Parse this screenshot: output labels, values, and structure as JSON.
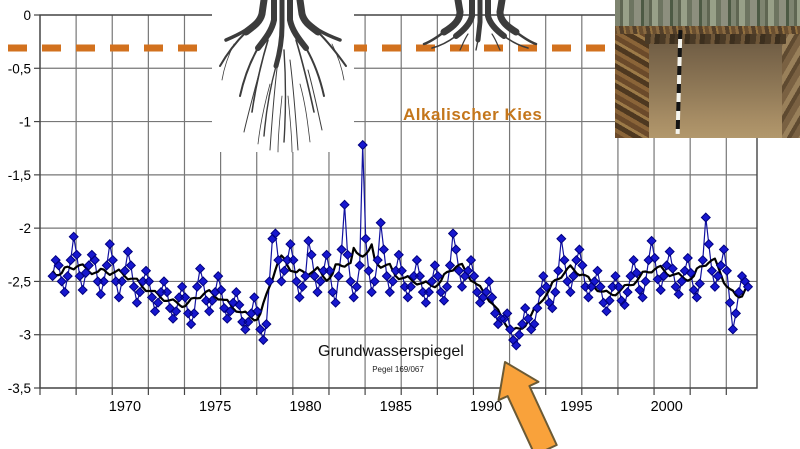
{
  "labels": {
    "aquifer_label": "Alkalischer Kies",
    "series_label": "Grundwasserspiegel",
    "gauge_label": "Pegel 169/067"
  },
  "colors": {
    "aquifer_label_text": "#C4761B",
    "reference_line": "#D2711E",
    "marker_fill": "#1717CE",
    "marker_edge": "#000080",
    "raw_line": "#1212A0",
    "trend_line": "#000000",
    "grid": "#777777",
    "axis_line": "#444444",
    "axis_text": "#000000",
    "arrow_fill": "#F9A23B",
    "arrow_edge": "#6B5A35"
  },
  "icons": {
    "deep_rooted_tree": "deep-root-illustration",
    "shallow_rooted_tree": "shallow-root-illustration",
    "soil_profile_photo": "soil-pit-photo",
    "annotation_arrow": "orange-arrow-pointing-to-1991-minimum"
  },
  "chart_data": {
    "type": "line",
    "title": "",
    "xlabel": "",
    "ylabel": "",
    "grid": true,
    "xlim": [
      1965.3,
      2005.0
    ],
    "ylim": [
      -3.5,
      0
    ],
    "x_tick_years": [
      1970,
      1975,
      1980,
      1985,
      1990,
      1995,
      2000
    ],
    "x_tick_labels": [
      "1970",
      "1975",
      "1980",
      "1985",
      "1990",
      "1995",
      "2000"
    ],
    "y_tick_values": [
      0,
      -0.5,
      -1,
      -1.5,
      -2,
      -2.5,
      -3,
      -3.5
    ],
    "y_tick_labels": [
      "0",
      "-0,5",
      "-1",
      "-1,5",
      "-2",
      "-2,5",
      "-3",
      "-3,5"
    ],
    "vertical_grid_step_years": 2,
    "reference_line": {
      "value": -0.31,
      "style": "dashed",
      "color": "#D2711E",
      "label": "Alkalischer Kies"
    },
    "annotation": {
      "type": "arrow",
      "points_to_year": 1991,
      "points_to_value": -3.1
    },
    "series": [
      {
        "name": "Grundwasserspiegel Pegel 169/067",
        "units": "m",
        "x_start": 1966.0,
        "x_step": 0.166667,
        "values": [
          -2.45,
          -2.3,
          -2.35,
          -2.5,
          -2.6,
          -2.45,
          -2.3,
          -2.08,
          -2.25,
          -2.45,
          -2.58,
          -2.42,
          -2.35,
          -2.25,
          -2.3,
          -2.5,
          -2.62,
          -2.5,
          -2.35,
          -2.15,
          -2.3,
          -2.5,
          -2.65,
          -2.5,
          -2.4,
          -2.22,
          -2.35,
          -2.55,
          -2.7,
          -2.6,
          -2.5,
          -2.4,
          -2.5,
          -2.65,
          -2.78,
          -2.7,
          -2.6,
          -2.5,
          -2.6,
          -2.75,
          -2.85,
          -2.78,
          -2.65,
          -2.55,
          -2.65,
          -2.8,
          -2.9,
          -2.8,
          -2.55,
          -2.38,
          -2.5,
          -2.68,
          -2.78,
          -2.68,
          -2.6,
          -2.45,
          -2.58,
          -2.75,
          -2.85,
          -2.78,
          -2.7,
          -2.6,
          -2.72,
          -2.88,
          -2.95,
          -2.88,
          -2.8,
          -2.65,
          -2.78,
          -2.95,
          -3.05,
          -2.9,
          -2.5,
          -2.1,
          -2.05,
          -2.3,
          -2.5,
          -2.4,
          -2.3,
          -2.15,
          -2.3,
          -2.5,
          -2.65,
          -2.55,
          -2.45,
          -2.12,
          -2.25,
          -2.45,
          -2.6,
          -2.5,
          -2.4,
          -2.25,
          -2.4,
          -2.6,
          -2.7,
          -2.45,
          -2.2,
          -1.78,
          -2.25,
          -2.5,
          -2.65,
          -2.55,
          -2.35,
          -1.22,
          -2.1,
          -2.4,
          -2.6,
          -2.5,
          -2.3,
          -1.95,
          -2.2,
          -2.45,
          -2.6,
          -2.5,
          -2.4,
          -2.25,
          -2.4,
          -2.55,
          -2.65,
          -2.55,
          -2.45,
          -2.3,
          -2.45,
          -2.6,
          -2.7,
          -2.6,
          -2.5,
          -2.35,
          -2.45,
          -2.6,
          -2.68,
          -2.55,
          -2.35,
          -2.05,
          -2.2,
          -2.4,
          -2.55,
          -2.45,
          -2.4,
          -2.3,
          -2.45,
          -2.6,
          -2.7,
          -2.65,
          -2.6,
          -2.5,
          -2.65,
          -2.8,
          -2.9,
          -2.85,
          -2.85,
          -2.8,
          -2.95,
          -3.05,
          -3.1,
          -3.0,
          -2.9,
          -2.75,
          -2.85,
          -2.95,
          -2.9,
          -2.75,
          -2.6,
          -2.45,
          -2.55,
          -2.7,
          -2.75,
          -2.6,
          -2.4,
          -2.1,
          -2.3,
          -2.5,
          -2.6,
          -2.45,
          -2.3,
          -2.2,
          -2.35,
          -2.55,
          -2.65,
          -2.55,
          -2.5,
          -2.4,
          -2.55,
          -2.7,
          -2.78,
          -2.68,
          -2.55,
          -2.45,
          -2.55,
          -2.68,
          -2.72,
          -2.6,
          -2.45,
          -2.3,
          -2.42,
          -2.58,
          -2.65,
          -2.5,
          -2.3,
          -2.12,
          -2.28,
          -2.48,
          -2.58,
          -2.45,
          -2.35,
          -2.22,
          -2.38,
          -2.55,
          -2.62,
          -2.5,
          -2.4,
          -2.28,
          -2.42,
          -2.58,
          -2.65,
          -2.52,
          -2.3,
          -1.9,
          -2.15,
          -2.4,
          -2.55,
          -2.45,
          -2.35,
          -2.2,
          -2.4,
          -2.7,
          -2.95,
          -2.8,
          -2.6,
          -2.45,
          -2.5,
          -2.55
        ]
      }
    ]
  }
}
